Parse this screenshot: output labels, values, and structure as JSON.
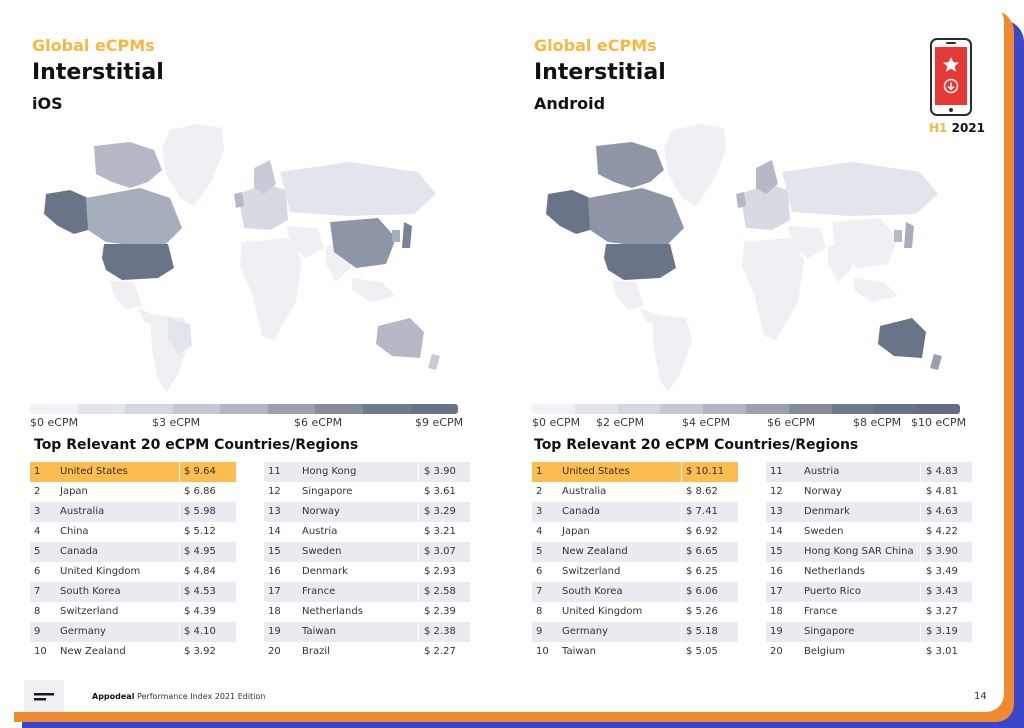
{
  "left": {
    "kicker": "Global eCPMs",
    "title": "Interstitial",
    "platform": "iOS",
    "scale_labels": [
      "$0 eCPM",
      "$3 eCPM",
      "$6 eCPM",
      "$9 eCPM"
    ],
    "table_title": "Top Relevant 20 eCPM Countries/Regions",
    "rows": [
      {
        "rank": "1",
        "country": "United States",
        "value": "$ 9.64"
      },
      {
        "rank": "2",
        "country": "Japan",
        "value": "$ 6.86"
      },
      {
        "rank": "3",
        "country": "Australia",
        "value": "$ 5.98"
      },
      {
        "rank": "4",
        "country": "China",
        "value": "$ 5.12"
      },
      {
        "rank": "5",
        "country": "Canada",
        "value": "$ 4.95"
      },
      {
        "rank": "6",
        "country": "United Kingdom",
        "value": "$ 4.84"
      },
      {
        "rank": "7",
        "country": "South Korea",
        "value": "$ 4.53"
      },
      {
        "rank": "8",
        "country": "Switzerland",
        "value": "$ 4.39"
      },
      {
        "rank": "9",
        "country": "Germany",
        "value": "$ 4.10"
      },
      {
        "rank": "10",
        "country": "New Zealand",
        "value": "$ 3.92"
      },
      {
        "rank": "11",
        "country": "Hong Kong",
        "value": "$ 3.90"
      },
      {
        "rank": "12",
        "country": "Singapore",
        "value": "$ 3.61"
      },
      {
        "rank": "13",
        "country": "Norway",
        "value": "$ 3.29"
      },
      {
        "rank": "14",
        "country": "Austria",
        "value": "$ 3.21"
      },
      {
        "rank": "15",
        "country": "Sweden",
        "value": "$ 3.07"
      },
      {
        "rank": "16",
        "country": "Denmark",
        "value": "$ 2.93"
      },
      {
        "rank": "17",
        "country": "France",
        "value": "$ 2.58"
      },
      {
        "rank": "18",
        "country": "Netherlands",
        "value": "$ 2.39"
      },
      {
        "rank": "19",
        "country": "Taiwan",
        "value": "$ 2.38"
      },
      {
        "rank": "20",
        "country": "Brazil",
        "value": "$ 2.27"
      }
    ]
  },
  "right": {
    "kicker": "Global eCPMs",
    "title": "Interstitial",
    "platform": "Android",
    "scale_labels": [
      "$0 eCPM",
      "$2 eCPM",
      "$4 eCPM",
      "$6 eCPM",
      "$8 eCPM",
      "$10 eCPM"
    ],
    "table_title": "Top Relevant 20 eCPM Countries/Regions",
    "rows": [
      {
        "rank": "1",
        "country": "United States",
        "value": "$ 10.11"
      },
      {
        "rank": "2",
        "country": "Australia",
        "value": "$ 8.62"
      },
      {
        "rank": "3",
        "country": "Canada",
        "value": "$ 7.41"
      },
      {
        "rank": "4",
        "country": "Japan",
        "value": "$ 6.92"
      },
      {
        "rank": "5",
        "country": "New Zealand",
        "value": "$ 6.65"
      },
      {
        "rank": "6",
        "country": "Switzerland",
        "value": "$ 6.25"
      },
      {
        "rank": "7",
        "country": "South Korea",
        "value": "$ 6.06"
      },
      {
        "rank": "8",
        "country": "United Kingdom",
        "value": "$ 5.26"
      },
      {
        "rank": "9",
        "country": "Germany",
        "value": "$ 5.18"
      },
      {
        "rank": "10",
        "country": "Taiwan",
        "value": "$ 5.05"
      },
      {
        "rank": "11",
        "country": "Austria",
        "value": "$ 4.83"
      },
      {
        "rank": "12",
        "country": "Norway",
        "value": "$ 4.81"
      },
      {
        "rank": "13",
        "country": "Denmark",
        "value": "$ 4.63"
      },
      {
        "rank": "14",
        "country": "Sweden",
        "value": "$ 4.22"
      },
      {
        "rank": "15",
        "country": "Hong Kong SAR China",
        "value": "$ 3.90"
      },
      {
        "rank": "16",
        "country": "Netherlands",
        "value": "$ 3.49"
      },
      {
        "rank": "17",
        "country": "Puerto Rico",
        "value": "$ 3.43"
      },
      {
        "rank": "18",
        "country": "France",
        "value": "$ 3.27"
      },
      {
        "rank": "19",
        "country": "Singapore",
        "value": "$ 3.19"
      },
      {
        "rank": "20",
        "country": "Belgium",
        "value": "$ 3.01"
      }
    ]
  },
  "badge": {
    "prefix": "H1",
    "year": "2021"
  },
  "footer": {
    "brand": "Appodeal",
    "text": "Performance Index 2021 Edition",
    "page": "14"
  },
  "colors": {
    "accent": "#f8b840",
    "highlight": "#fbbd4f",
    "frame_orange": "#f08a2e",
    "frame_blue": "#3b47c8",
    "phone_red": "#e53935",
    "map_dark": "#6a7488",
    "map_light": "#eef0f4"
  },
  "icons": {
    "badge_phone": "phone-icon",
    "badge_star": "star-icon",
    "badge_download": "download-icon",
    "footer": "menu-lines-icon"
  }
}
